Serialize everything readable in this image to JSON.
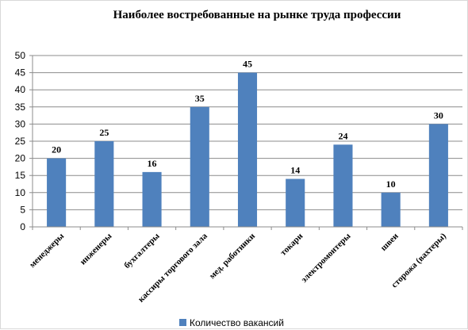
{
  "chart_data": {
    "type": "bar",
    "title": "Наиболее востребованные на рынке труда профессии",
    "categories": [
      "менеджеры",
      "инженеры",
      "бухгалтеры",
      "кассиры торгового зала",
      "мед. работники",
      "токари",
      "электромонтеры",
      "швеи",
      "сторожа (вахтеры)"
    ],
    "series": [
      {
        "name": "Количество вакансий",
        "values": [
          20,
          25,
          16,
          35,
          45,
          14,
          24,
          10,
          30
        ],
        "color": "#4f81bd"
      }
    ],
    "ylim": [
      0,
      50
    ],
    "yticks": [
      0,
      5,
      10,
      15,
      20,
      25,
      30,
      35,
      40,
      45,
      50
    ],
    "grid": true,
    "data_labels": true,
    "legend_position": "bottom"
  }
}
